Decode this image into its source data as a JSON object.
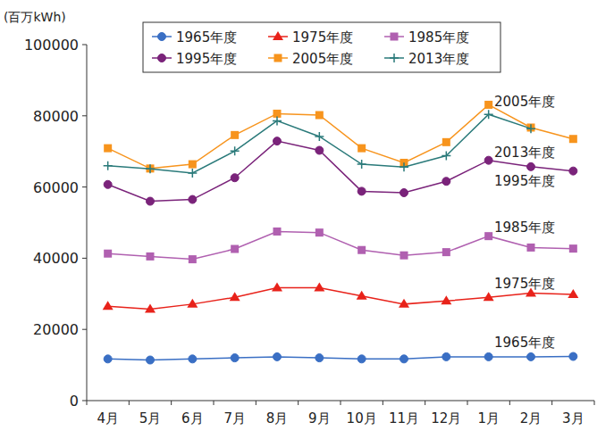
{
  "chart_data": {
    "type": "line",
    "y_axis_label": "(百万kWh)",
    "categories": [
      "4月",
      "5月",
      "6月",
      "7月",
      "8月",
      "9月",
      "10月",
      "11月",
      "12月",
      "1月",
      "2月",
      "3月"
    ],
    "series": [
      {
        "name": "1965年度",
        "color": "#3a6fc4",
        "marker": "circle",
        "line_style": "solid",
        "values": [
          11700,
          11400,
          11700,
          12000,
          12300,
          12000,
          11700,
          11700,
          12300,
          12300,
          12300,
          12400
        ]
      },
      {
        "name": "1975年度",
        "color": "#e8221a",
        "marker": "triangle",
        "line_style": "solid",
        "values": [
          26500,
          25700,
          27100,
          29000,
          31700,
          31700,
          29400,
          27100,
          28000,
          29000,
          30200,
          29800
        ]
      },
      {
        "name": "1985年度",
        "color": "#b060b0",
        "marker": "square",
        "line_style": "solid",
        "values": [
          41300,
          40500,
          39700,
          42600,
          47500,
          47200,
          42300,
          40800,
          41700,
          46200,
          43000,
          42700
        ]
      },
      {
        "name": "1995年度",
        "color": "#7a237a",
        "marker": "circle",
        "line_style": "solid",
        "values": [
          60700,
          56000,
          56500,
          62600,
          72900,
          70300,
          58800,
          58400,
          61600,
          67500,
          65700,
          64500
        ]
      },
      {
        "name": "2005年度",
        "color": "#f7941d",
        "marker": "square",
        "line_style": "solid",
        "values": [
          70900,
          65200,
          66400,
          74600,
          80600,
          80200,
          70900,
          66800,
          72600,
          83100,
          76700,
          73500
        ]
      },
      {
        "name": "2013年度",
        "color": "#2a7a7a",
        "marker": "plus",
        "line_style": "solid",
        "values": [
          66000,
          65100,
          63900,
          70100,
          78600,
          74200,
          66400,
          65600,
          68800,
          80400,
          76400,
          null
        ]
      }
    ],
    "annotations": [
      "2005年度",
      "2013年度",
      "1995年度",
      "1985年度",
      "1975年度",
      "1965年度"
    ],
    "ylim": [
      0,
      100000
    ],
    "yticks": [
      0,
      20000,
      40000,
      60000,
      80000,
      100000
    ],
    "grid": false,
    "legend": "top"
  }
}
